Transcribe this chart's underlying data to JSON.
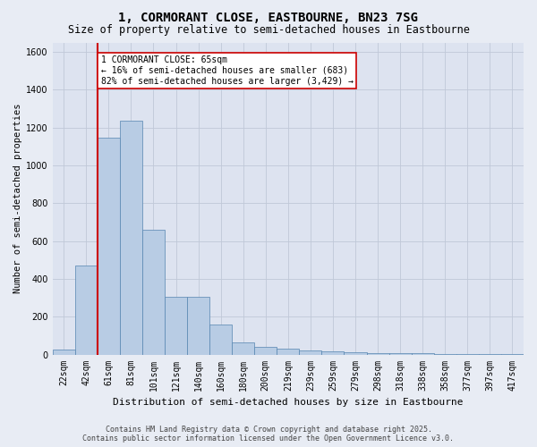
{
  "title": "1, CORMORANT CLOSE, EASTBOURNE, BN23 7SG",
  "subtitle": "Size of property relative to semi-detached houses in Eastbourne",
  "xlabel": "Distribution of semi-detached houses by size in Eastbourne",
  "ylabel": "Number of semi-detached properties",
  "footer_line1": "Contains HM Land Registry data © Crown copyright and database right 2025.",
  "footer_line2": "Contains public sector information licensed under the Open Government Licence v3.0.",
  "bin_labels": [
    "22sqm",
    "42sqm",
    "61sqm",
    "81sqm",
    "101sqm",
    "121sqm",
    "140sqm",
    "160sqm",
    "180sqm",
    "200sqm",
    "219sqm",
    "239sqm",
    "259sqm",
    "279sqm",
    "298sqm",
    "318sqm",
    "338sqm",
    "358sqm",
    "377sqm",
    "397sqm",
    "417sqm"
  ],
  "bar_values": [
    25,
    470,
    1145,
    1235,
    660,
    305,
    305,
    158,
    65,
    40,
    33,
    20,
    15,
    10,
    8,
    5,
    5,
    3,
    2,
    2,
    2
  ],
  "bar_color": "#b8cce4",
  "bar_edge_color": "#5585b0",
  "annotation_title": "1 CORMORANT CLOSE: 65sqm",
  "annotation_line1": "← 16% of semi-detached houses are smaller (683)",
  "annotation_line2": "82% of semi-detached houses are larger (3,429) →",
  "annotation_box_color": "#ffffff",
  "annotation_box_edge": "#cc0000",
  "vline_color": "#cc0000",
  "ylim": [
    0,
    1650
  ],
  "yticks": [
    0,
    200,
    400,
    600,
    800,
    1000,
    1200,
    1400,
    1600
  ],
  "grid_color": "#c0c8d8",
  "bg_color": "#e8ecf4",
  "plot_bg_color": "#dde3f0",
  "title_fontsize": 10,
  "subtitle_fontsize": 8.5,
  "axis_label_fontsize": 7.5,
  "tick_fontsize": 7,
  "footer_fontsize": 6,
  "annot_fontsize": 7
}
